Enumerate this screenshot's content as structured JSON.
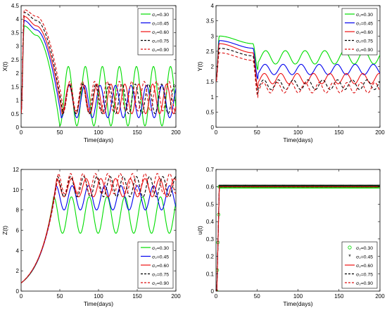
{
  "figure": {
    "x_axis_label": "Time(days)",
    "legend_entries": [
      {
        "label": "σ₂=0.30",
        "color": "#00dd00",
        "dash": "solid",
        "marker": "circle"
      },
      {
        "label": "σ₂=0.45",
        "color": "#0000ee",
        "dash": "solid",
        "marker": "asterisk"
      },
      {
        "label": "σ₂=0.60",
        "color": "#ee1111",
        "dash": "solid",
        "marker": "none"
      },
      {
        "label": "σ₂=0.75",
        "color": "#000000",
        "dash": "dashed",
        "marker": "none"
      },
      {
        "label": "σ₂=0.90",
        "color": "#dd1111",
        "dash": "dashed",
        "marker": "none"
      }
    ]
  },
  "chart_data": [
    {
      "type": "line",
      "ylabel": "X(t)",
      "xlabel": "Time(days)",
      "xlim": [
        0,
        200
      ],
      "ylim": [
        0,
        4.5
      ],
      "xticks": [
        0,
        50,
        100,
        150,
        200
      ],
      "yticks": [
        0,
        0.5,
        1,
        1.5,
        2,
        2.5,
        3,
        3.5,
        4,
        4.5
      ],
      "legend": "top-right",
      "series": [
        {
          "name": "σ₂=0.30",
          "curve": {
            "kind": "osc_decay",
            "start": 0.5,
            "peak": 3.75,
            "peak_t": 4,
            "plateau": 3.4,
            "plateau_t": 20,
            "drop_t": 50,
            "center": 1.15,
            "amp": 1.1,
            "period": 22,
            "phase_t": 60
          }
        },
        {
          "name": "σ₂=0.45",
          "curve": {
            "kind": "osc_decay",
            "start": 0.5,
            "peak": 3.95,
            "peak_t": 4,
            "plateau": 3.6,
            "plateau_t": 20,
            "drop_t": 52,
            "center": 0.95,
            "amp": 0.6,
            "period": 20,
            "phase_t": 62
          }
        },
        {
          "name": "σ₂=0.60",
          "curve": {
            "kind": "osc_decay",
            "start": 0.5,
            "peak": 4.1,
            "peak_t": 4,
            "plateau": 3.75,
            "plateau_t": 20,
            "drop_t": 53,
            "center": 1.05,
            "amp": 0.55,
            "period": 18,
            "phase_t": 63
          }
        },
        {
          "name": "σ₂=0.75",
          "curve": {
            "kind": "osc_decay",
            "start": 0.5,
            "peak": 4.25,
            "peak_t": 4,
            "plateau": 3.95,
            "plateau_t": 20,
            "drop_t": 54,
            "center": 1.05,
            "amp": 0.55,
            "period": 17,
            "phase_t": 64
          }
        },
        {
          "name": "σ₂=0.90",
          "curve": {
            "kind": "osc_decay",
            "start": 0.5,
            "peak": 4.35,
            "peak_t": 4,
            "plateau": 4.1,
            "plateau_t": 20,
            "drop_t": 55,
            "center": 1.15,
            "amp": 0.55,
            "period": 16,
            "phase_t": 65
          }
        }
      ]
    },
    {
      "type": "line",
      "ylabel": "Y(t)",
      "xlabel": "Time(days)",
      "xlim": [
        0,
        200
      ],
      "ylim": [
        0,
        4
      ],
      "xticks": [
        0,
        50,
        100,
        150,
        200
      ],
      "yticks": [
        0,
        0.5,
        1,
        1.5,
        2,
        2.5,
        3,
        3.5,
        4
      ],
      "legend": "top-right",
      "series": [
        {
          "name": "σ₂=0.30",
          "curve": {
            "kind": "osc_settle",
            "start": 1.5,
            "peak": 3.0,
            "peak_t": 4,
            "plateau": 2.75,
            "drop_t": 45,
            "center": 2.3,
            "amp": 0.22,
            "period": 24,
            "phase_t": 60
          }
        },
        {
          "name": "σ₂=0.45",
          "curve": {
            "kind": "osc_settle",
            "start": 1.5,
            "peak": 2.85,
            "peak_t": 4,
            "plateau": 2.6,
            "drop_t": 45,
            "center": 1.9,
            "amp": 0.17,
            "period": 22,
            "phase_t": 60
          }
        },
        {
          "name": "σ₂=0.60",
          "curve": {
            "kind": "osc_settle",
            "start": 1.5,
            "peak": 2.75,
            "peak_t": 4,
            "plateau": 2.45,
            "drop_t": 45,
            "center": 1.6,
            "amp": 0.17,
            "period": 20,
            "phase_t": 60
          }
        },
        {
          "name": "σ₂=0.75",
          "curve": {
            "kind": "osc_settle",
            "start": 1.5,
            "peak": 2.6,
            "peak_t": 4,
            "plateau": 2.35,
            "drop_t": 45,
            "center": 1.4,
            "amp": 0.16,
            "period": 18,
            "phase_t": 60
          }
        },
        {
          "name": "σ₂=0.90",
          "curve": {
            "kind": "osc_settle",
            "start": 1.5,
            "peak": 2.45,
            "peak_t": 4,
            "plateau": 2.2,
            "drop_t": 45,
            "center": 1.3,
            "amp": 0.17,
            "period": 17,
            "phase_t": 60
          }
        }
      ]
    },
    {
      "type": "line",
      "ylabel": "Z(t)",
      "xlabel": "Time(days)",
      "xlim": [
        0,
        200
      ],
      "ylim": [
        0,
        12
      ],
      "xticks": [
        0,
        50,
        100,
        150,
        200
      ],
      "yticks": [
        0,
        2,
        4,
        6,
        8,
        10,
        12
      ],
      "legend": "bottom-right",
      "series": [
        {
          "name": "σ₂=0.30",
          "curve": {
            "kind": "grow_osc",
            "start": 0.8,
            "rise_end": 42,
            "level": 9.3,
            "center": 7.5,
            "amp": 2.0,
            "period": 23,
            "phase_t": 48
          }
        },
        {
          "name": "σ₂=0.45",
          "curve": {
            "kind": "grow_osc",
            "start": 0.8,
            "rise_end": 45,
            "level": 10.4,
            "center": 9.2,
            "amp": 1.1,
            "period": 21,
            "phase_t": 50
          }
        },
        {
          "name": "σ₂=0.60",
          "curve": {
            "kind": "grow_osc",
            "start": 0.8,
            "rise_end": 46,
            "level": 11.1,
            "center": 10.2,
            "amp": 0.8,
            "period": 19,
            "phase_t": 52
          }
        },
        {
          "name": "σ₂=0.75",
          "curve": {
            "kind": "grow_osc",
            "start": 0.8,
            "rise_end": 47,
            "level": 11.3,
            "center": 10.3,
            "amp": 0.8,
            "period": 17,
            "phase_t": 53
          }
        },
        {
          "name": "σ₂=0.90",
          "curve": {
            "kind": "grow_osc",
            "start": 0.8,
            "rise_end": 48,
            "level": 11.6,
            "center": 10.6,
            "amp": 1.0,
            "period": 16,
            "phase_t": 54
          }
        }
      ]
    },
    {
      "type": "line",
      "ylabel": "u(t)",
      "xlabel": "Time(days)",
      "xlim": [
        0,
        200
      ],
      "ylim": [
        0,
        0.7
      ],
      "xticks": [
        0,
        50,
        100,
        150,
        200
      ],
      "yticks": [
        0,
        0.1,
        0.2,
        0.3,
        0.4,
        0.5,
        0.6,
        0.7
      ],
      "legend": "bottom-right",
      "series": [
        {
          "name": "σ₂=0.30",
          "curve": {
            "kind": "step",
            "start": 0.0,
            "ramp_start": 1,
            "ramp_end": 4,
            "level": 0.6
          }
        },
        {
          "name": "σ₂=0.45",
          "curve": {
            "kind": "step",
            "start": 0.0,
            "ramp_start": 1,
            "ramp_end": 4,
            "level": 0.6
          }
        },
        {
          "name": "σ₂=0.60",
          "curve": {
            "kind": "step",
            "start": 0.0,
            "ramp_start": 1,
            "ramp_end": 4,
            "level": 0.6
          }
        },
        {
          "name": "σ₂=0.75",
          "curve": {
            "kind": "step",
            "start": 0.0,
            "ramp_start": 1,
            "ramp_end": 4,
            "level": 0.6
          }
        },
        {
          "name": "σ₂=0.90",
          "curve": {
            "kind": "step",
            "start": 0.0,
            "ramp_start": 1,
            "ramp_end": 4,
            "level": 0.6
          }
        }
      ]
    }
  ]
}
